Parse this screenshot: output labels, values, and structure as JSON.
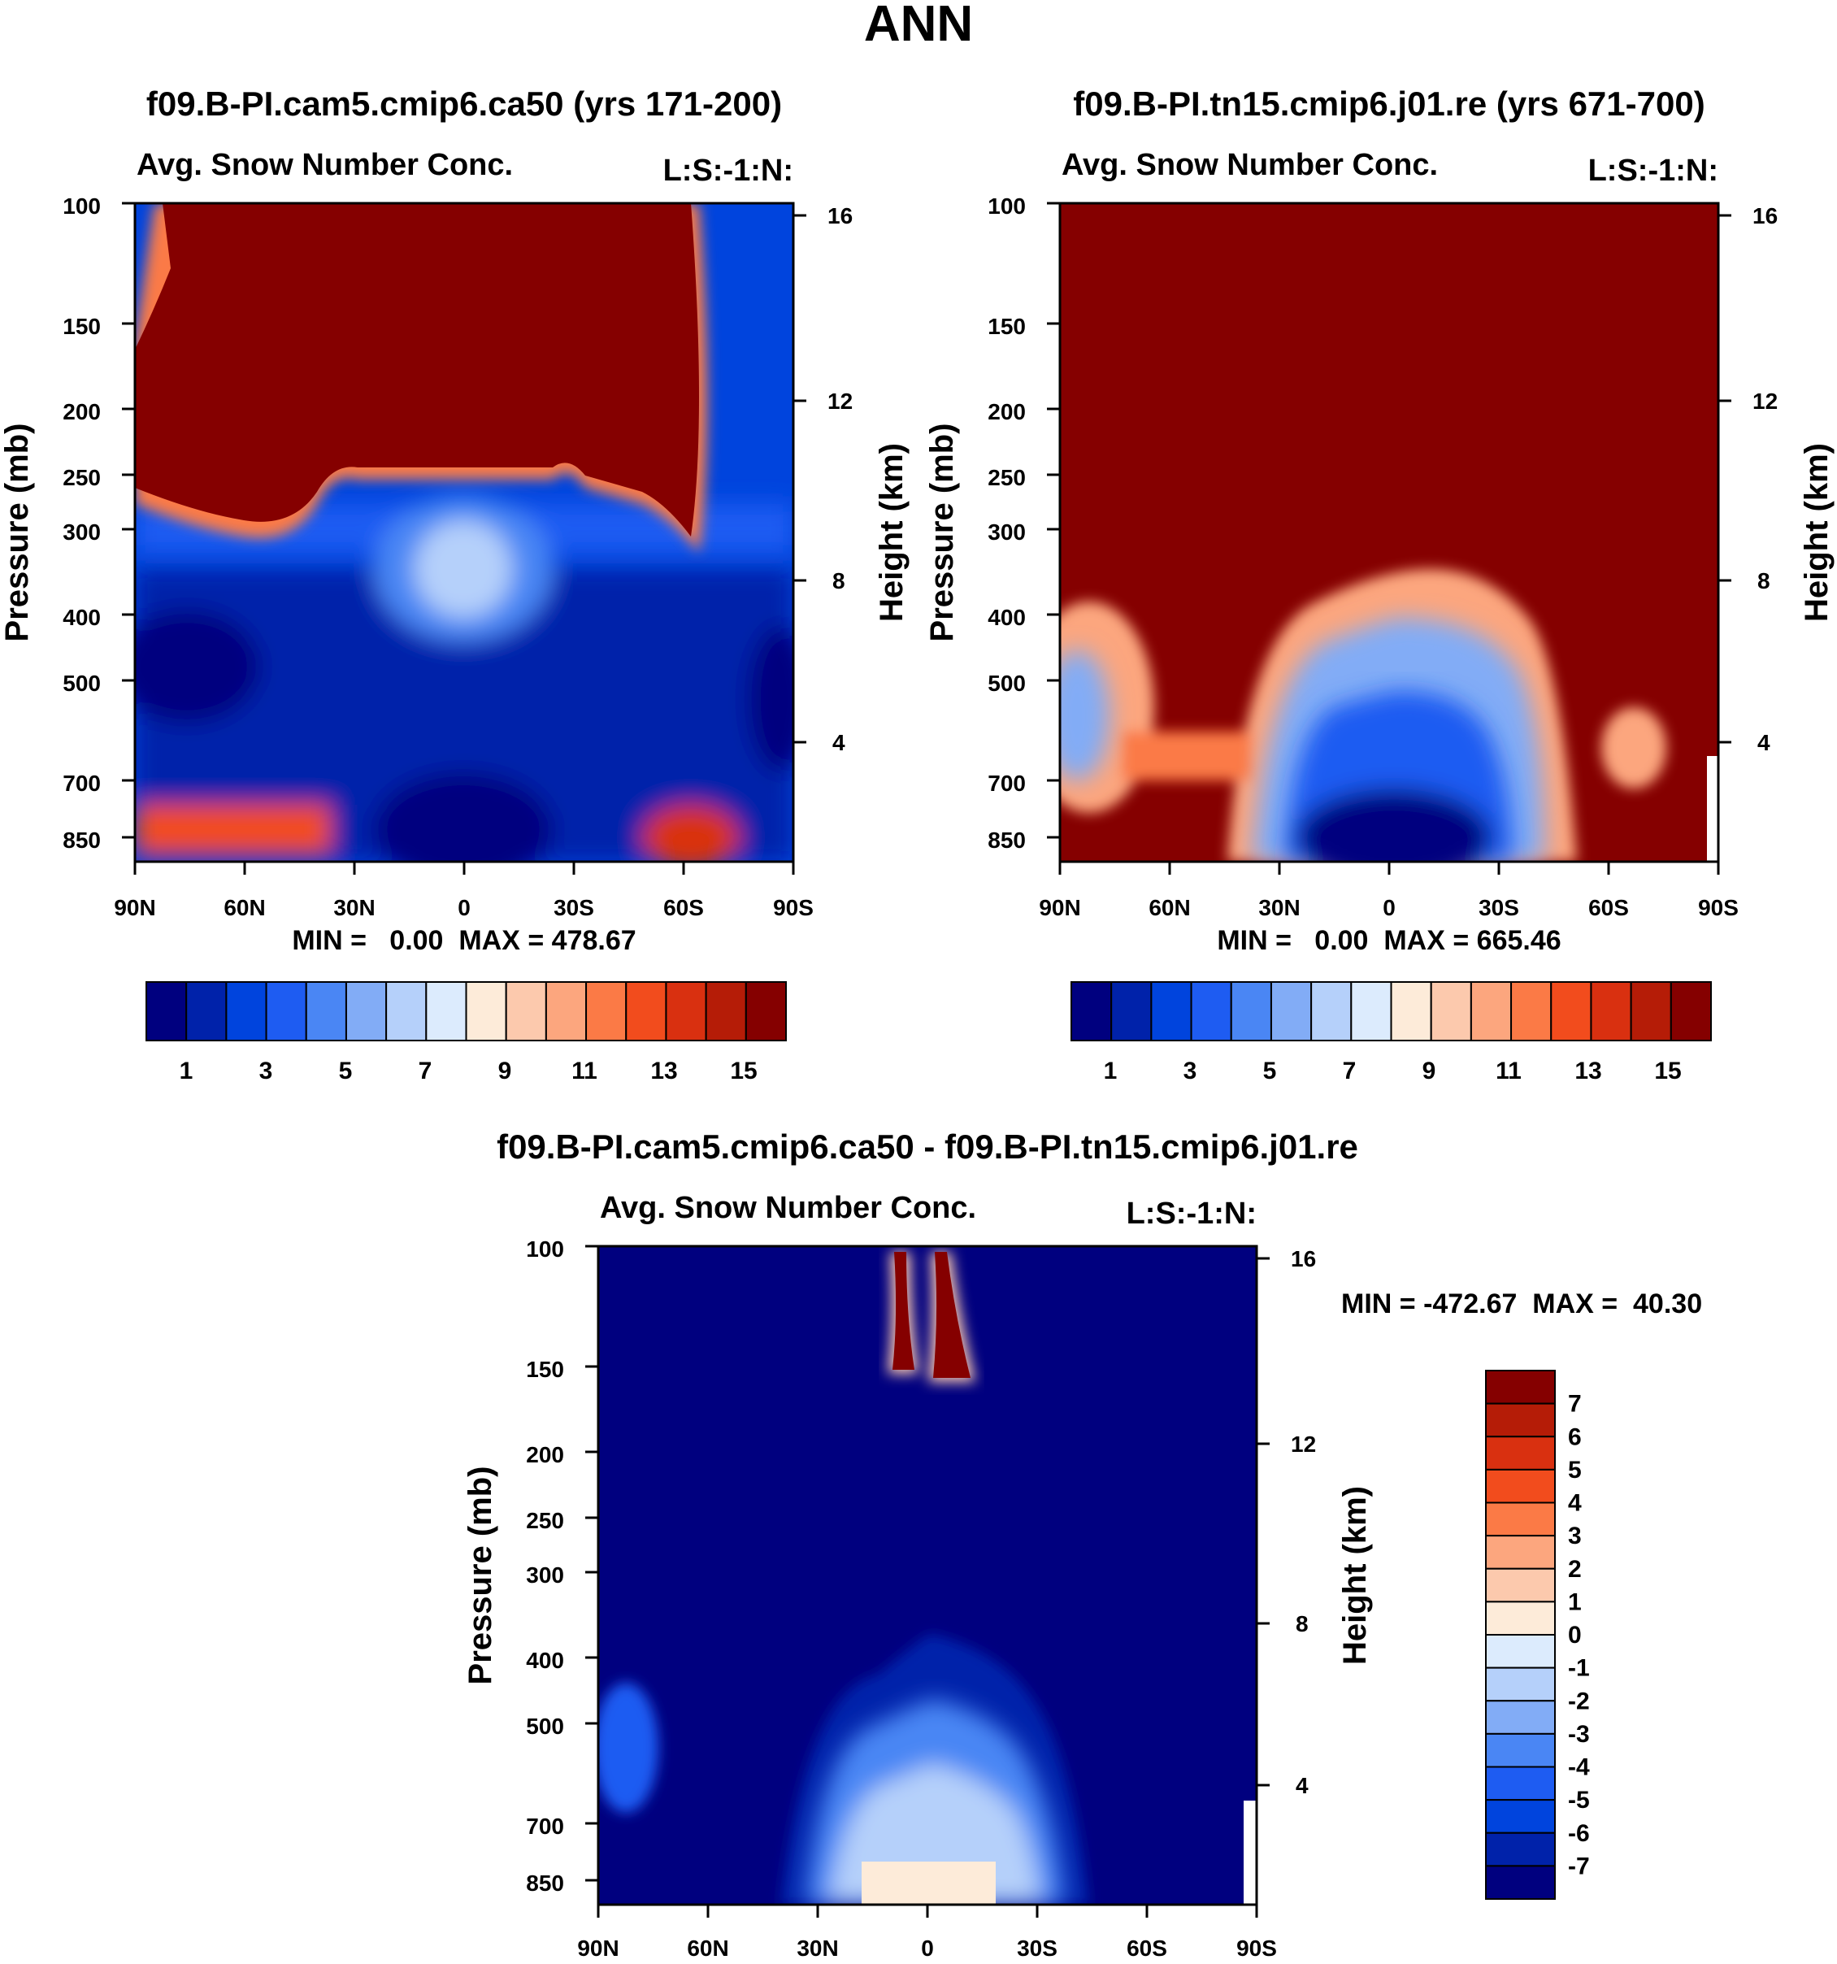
{
  "main_title": "ANN",
  "colors": {
    "abs_palette": [
      "#00007f",
      "#0022aa",
      "#0044dd",
      "#1e5cf2",
      "#4a86f4",
      "#82acf6",
      "#b5d0fa",
      "#dcebfd",
      "#fdebd9",
      "#fcc9ad",
      "#fca67e",
      "#fb7a46",
      "#f24c1d",
      "#d93010",
      "#b51c07",
      "#850000"
    ],
    "diff_palette": [
      "#00007f",
      "#0022aa",
      "#0044dd",
      "#1e5cf2",
      "#4a86f4",
      "#82acf6",
      "#b5d0fa",
      "#dcebfd",
      "#fdebd9",
      "#fcc9ad",
      "#fca67e",
      "#fb7a46",
      "#f24c1d",
      "#d93010",
      "#b51c07",
      "#850000"
    ]
  },
  "chart_data": [
    {
      "type": "heatmap",
      "panel": "model1",
      "title": "f09.B-PI.cam5.cmip6.ca50 (yrs 171-200)",
      "left_label": "Avg. Snow Number Conc.",
      "right_label": "L:S:-1:N:",
      "xlabel": "",
      "ylabel": "Pressure (mb)",
      "y2label": "Height (km)",
      "x_ticks": [
        "90N",
        "60N",
        "30N",
        "0",
        "30S",
        "60S",
        "90S"
      ],
      "y_ticks": [
        "100",
        "150",
        "200",
        "250",
        "300",
        "400",
        "500",
        "700",
        "850"
      ],
      "y2_ticks": [
        "16",
        "12",
        "8",
        "4"
      ],
      "xlim": [
        90,
        -90
      ],
      "ylim_mb": [
        100,
        1000
      ],
      "stats_text": "MIN =   0.00  MAX = 478.67",
      "min": 0.0,
      "max": 478.67,
      "field_description": "saturated above ~280 mb outside 80N-90S; blue below with deep minimum near 850 mb equator",
      "colorbar_labels": [
        "1",
        "3",
        "5",
        "7",
        "9",
        "11",
        "13",
        "15"
      ],
      "levels": [
        1,
        2,
        3,
        4,
        5,
        6,
        7,
        8,
        9,
        10,
        11,
        12,
        13,
        14,
        15
      ]
    },
    {
      "type": "heatmap",
      "panel": "model2",
      "title": "f09.B-PI.tn15.cmip6.j01.re (yrs 671-700)",
      "left_label": "Avg. Snow Number Conc.",
      "right_label": "L:S:-1:N:",
      "xlabel": "",
      "ylabel": "Pressure (mb)",
      "y2label": "Height (km)",
      "x_ticks": [
        "90N",
        "60N",
        "30N",
        "0",
        "30S",
        "60S",
        "90S"
      ],
      "y_ticks": [
        "100",
        "150",
        "200",
        "250",
        "300",
        "400",
        "500",
        "700",
        "850"
      ],
      "y2_ticks": [
        "16",
        "12",
        "8",
        "4"
      ],
      "xlim": [
        90,
        -90
      ],
      "ylim_mb": [
        100,
        1000
      ],
      "stats_text": "MIN =   0.00  MAX = 665.46",
      "min": 0.0,
      "max": 665.46,
      "colorbar_labels": [
        "1",
        "3",
        "5",
        "7",
        "9",
        "11",
        "13",
        "15"
      ],
      "levels": [
        1,
        2,
        3,
        4,
        5,
        6,
        7,
        8,
        9,
        10,
        11,
        12,
        13,
        14,
        15
      ]
    },
    {
      "type": "heatmap",
      "panel": "difference",
      "title": "f09.B-PI.cam5.cmip6.ca50 - f09.B-PI.tn15.cmip6.j01.re",
      "left_label": "Avg. Snow Number Conc.",
      "right_label": "L:S:-1:N:",
      "xlabel": "",
      "ylabel": "Pressure (mb)",
      "y2label": "Height (km)",
      "x_ticks": [
        "90N",
        "60N",
        "30N",
        "0",
        "30S",
        "60S",
        "90S"
      ],
      "y_ticks": [
        "100",
        "150",
        "200",
        "250",
        "300",
        "400",
        "500",
        "700",
        "850"
      ],
      "y2_ticks": [
        "16",
        "12",
        "8",
        "4"
      ],
      "xlim": [
        90,
        -90
      ],
      "ylim_mb": [
        100,
        1000
      ],
      "stats_text": "MIN = -472.67  MAX =  40.30",
      "min": -472.67,
      "max": 40.3,
      "colorbar_labels": [
        "7",
        "6",
        "5",
        "4",
        "3",
        "2",
        "1",
        "0",
        "-1",
        "-2",
        "-3",
        "-4",
        "-5",
        "-6",
        "-7"
      ],
      "levels": [
        -7,
        -6,
        -5,
        -4,
        -3,
        -2,
        -1,
        0,
        1,
        2,
        3,
        4,
        5,
        6,
        7
      ]
    }
  ]
}
